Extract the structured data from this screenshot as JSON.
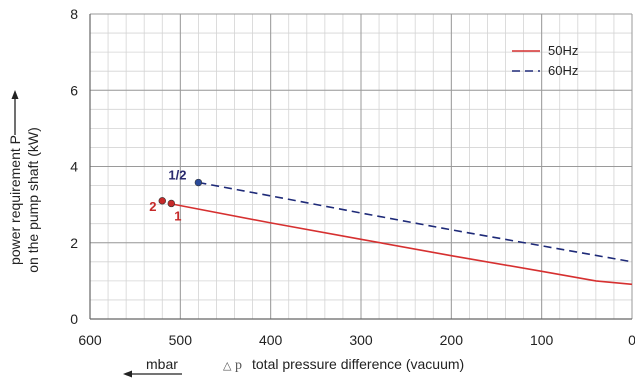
{
  "chart_data": {
    "type": "line",
    "xlabel": "total pressure difference (vacuum)",
    "xlabel_symbol": "p",
    "xlabel_delta": "△",
    "xunit": "mbar",
    "ylabel_line1": "power requirement P",
    "ylabel_line2": "on the pump shaft (kW)",
    "xlim": [
      600,
      0
    ],
    "ylim": [
      0,
      8
    ],
    "x_reversed": true,
    "x_ticks": [
      600,
      500,
      400,
      300,
      200,
      100,
      0
    ],
    "y_ticks": [
      0,
      2,
      4,
      6,
      8
    ],
    "grid": true,
    "legend_position": "top-right",
    "series": [
      {
        "name": "50Hz",
        "color": "#d63030",
        "dash": "solid",
        "x": [
          510,
          400,
          300,
          200,
          100,
          40,
          0
        ],
        "y": [
          3.02,
          2.52,
          2.09,
          1.66,
          1.25,
          1.0,
          0.91
        ]
      },
      {
        "name": "60Hz",
        "color": "#1e2a78",
        "dash": "dashed",
        "x": [
          480,
          400,
          300,
          200,
          100,
          0
        ],
        "y": [
          3.58,
          3.23,
          2.78,
          2.34,
          1.92,
          1.5
        ]
      }
    ],
    "points": [
      {
        "label": "1",
        "x": 510,
        "y": 3.03,
        "color": "#c62a2a",
        "label_color": "#c62a2a"
      },
      {
        "label": "2",
        "x": 520,
        "y": 3.1,
        "color": "#c62a2a",
        "label_color": "#c62a2a"
      },
      {
        "label": "1/2",
        "x": 480,
        "y": 3.58,
        "color": "#2a4a9a",
        "label_color": "#2a2a6e"
      }
    ]
  }
}
